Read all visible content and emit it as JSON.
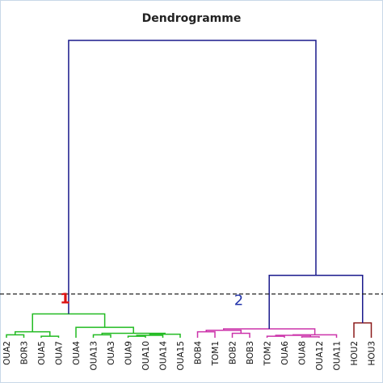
{
  "chart_data": {
    "type": "dendrogram",
    "title": "Dendrogramme",
    "leaves": [
      "OUA2",
      "BOR3",
      "OUA5",
      "OUA7",
      "OUA4",
      "OUA13",
      "OUA3",
      "OUA9",
      "OUA10",
      "OUA14",
      "OUA15",
      "BOB4",
      "TOM1",
      "BOB2",
      "BOB3",
      "TOM2",
      "OUA6",
      "OUA8",
      "OUA12",
      "OUA11",
      "HOU2",
      "HOU3"
    ],
    "merges": [
      {
        "children": [
          0,
          1
        ],
        "height": 1,
        "color": "#22bb22"
      },
      {
        "children": [
          2,
          3
        ],
        "height": 0.5,
        "color": "#22bb22"
      },
      {
        "children": [
          22,
          23
        ],
        "height": 2,
        "color": "#22bb22"
      },
      {
        "children": [
          5,
          6
        ],
        "height": 1,
        "color": "#22bb22"
      },
      {
        "children": [
          7,
          8
        ],
        "height": 0.5,
        "color": "#22bb22"
      },
      {
        "children": [
          26,
          9
        ],
        "height": 0.8,
        "color": "#22bb22"
      },
      {
        "children": [
          27,
          10
        ],
        "height": 1.2,
        "color": "#22bb22"
      },
      {
        "children": [
          25,
          28
        ],
        "height": 1.5,
        "color": "#22bb22"
      },
      {
        "children": [
          4,
          29
        ],
        "height": 3.5,
        "color": "#22bb22"
      },
      {
        "children": [
          24,
          30
        ],
        "height": 8,
        "color": "#22bb22"
      },
      {
        "children": [
          11,
          12
        ],
        "height": 2,
        "color": "#cc33aa"
      },
      {
        "children": [
          13,
          14
        ],
        "height": 1.5,
        "color": "#cc33aa"
      },
      {
        "children": [
          32,
          33
        ],
        "height": 2.5,
        "color": "#cc33aa"
      },
      {
        "children": [
          15,
          16
        ],
        "height": 0.5,
        "color": "#cc33aa"
      },
      {
        "children": [
          17,
          18
        ],
        "height": 0.3,
        "color": "#cc33aa"
      },
      {
        "children": [
          35,
          36
        ],
        "height": 0.8,
        "color": "#cc33aa"
      },
      {
        "children": [
          37,
          19
        ],
        "height": 1,
        "color": "#cc33aa"
      },
      {
        "children": [
          34,
          38
        ],
        "height": 3,
        "color": "#cc33aa"
      },
      {
        "children": [
          20,
          21
        ],
        "height": 5,
        "color": "#8b1a1a"
      },
      {
        "children": [
          39,
          40
        ],
        "height": 21,
        "color": "#1a1a8c"
      },
      {
        "children": [
          31,
          41
        ],
        "height": 100,
        "color": "#1a1a8c"
      }
    ],
    "cut_height": 14.7,
    "ylim": [
      0,
      100
    ],
    "annotations": [
      {
        "text": "1",
        "height": 11.5,
        "leaf": 3,
        "color": "#dd1111"
      },
      {
        "text": "2",
        "height": 11,
        "leaf": 13,
        "color": "#2233aa"
      }
    ]
  }
}
